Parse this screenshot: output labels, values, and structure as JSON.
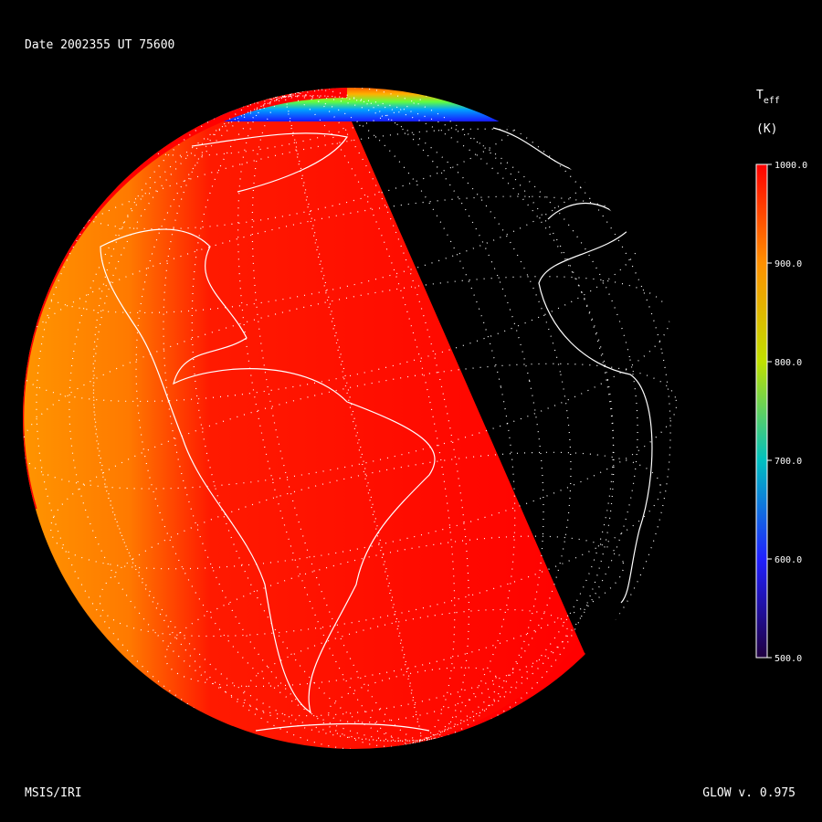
{
  "header": {
    "date_time": "Date 2002355  UT 75600"
  },
  "colorbar": {
    "title": "T",
    "title_subscript": "eff",
    "unit": "(K)",
    "range": [
      500,
      1000
    ],
    "ticks": [
      {
        "value": 1000,
        "label": "1000.0"
      },
      {
        "value": 900,
        "label": "900.0"
      },
      {
        "value": 800,
        "label": "800.0"
      },
      {
        "value": 700,
        "label": "700.0"
      },
      {
        "value": 600,
        "label": "600.0"
      },
      {
        "value": 500,
        "label": "500.0"
      }
    ]
  },
  "footer": {
    "left": "MSIS/IRI",
    "right": "GLOW v. 0.975"
  }
}
